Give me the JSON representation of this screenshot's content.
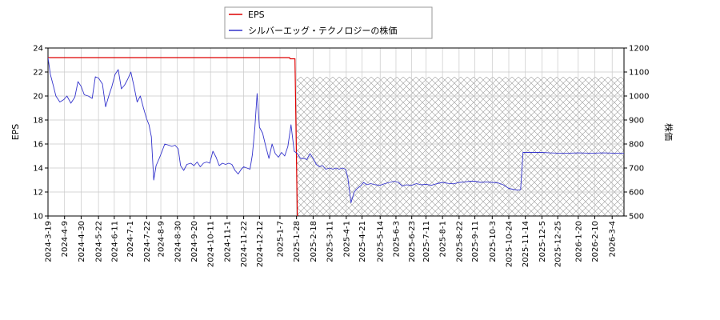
{
  "chart_data": {
    "type": "line",
    "legend": {
      "placement": "top-center",
      "entries": [
        {
          "name": "EPS",
          "color": "#dd0000"
        },
        {
          "name": "シルバーエッグ・テクノロジーの株価",
          "color": "#3333cc"
        }
      ]
    },
    "ylabel_left": "EPS",
    "ylabel_right": "株価",
    "ylim_left": [
      10,
      24
    ],
    "ylim_right": [
      500,
      1200
    ],
    "yticks_left": [
      "10",
      "12",
      "14",
      "16",
      "18",
      "20",
      "22",
      "24"
    ],
    "yticks_right": [
      "500",
      "600",
      "700",
      "800",
      "900",
      "1000",
      "1100",
      "1200"
    ],
    "xlim": [
      "2024-03-19",
      "2026-03-19"
    ],
    "xticks": [
      "2024-3-19",
      "2024-4-9",
      "2024-4-30",
      "2024-5-22",
      "2024-6-11",
      "2024-7-1",
      "2024-7-22",
      "2024-8-9",
      "2024-8-30",
      "2024-9-20",
      "2024-10-11",
      "2024-11-1",
      "2024-11-22",
      "2024-12-12",
      "2025-1-7",
      "2025-1-28",
      "2025-2-18",
      "2025-3-11",
      "2025-4-1",
      "2025-4-21",
      "2025-5-14",
      "2025-6-3",
      "2025-6-23",
      "2025-7-11",
      "2025-8-1",
      "2025-8-22",
      "2025-9-11",
      "2025-10-3",
      "2025-10-24",
      "2025-11-14",
      "2025-12-5",
      "2025-12-25",
      "2026-1-20",
      "2026-2-10",
      "2026-3-4"
    ],
    "grid": true,
    "forecast_region": {
      "x_start": "2025-01-28",
      "x_end": "2026-03-19",
      "y_top_right": 1080,
      "pattern": "crosshatch"
    },
    "series": [
      {
        "name": "EPS",
        "axis": "left",
        "color": "#dd0000",
        "points": [
          {
            "x": "2024-03-19",
            "y": 23.2
          },
          {
            "x": "2025-01-19",
            "y": 23.2
          },
          {
            "x": "2025-01-20",
            "y": 23.1
          },
          {
            "x": "2025-01-26",
            "y": 23.1
          },
          {
            "x": "2025-01-29",
            "y": 10.0
          }
        ]
      },
      {
        "name": "シルバーエッグ・テクノロジーの株価",
        "axis": "right",
        "color": "#3333cc",
        "points": [
          {
            "x": "2024-03-19",
            "y": 1160
          },
          {
            "x": "2024-03-22",
            "y": 1090
          },
          {
            "x": "2024-03-26",
            "y": 1040
          },
          {
            "x": "2024-03-29",
            "y": 1000
          },
          {
            "x": "2024-04-03",
            "y": 975
          },
          {
            "x": "2024-04-08",
            "y": 985
          },
          {
            "x": "2024-04-12",
            "y": 1000
          },
          {
            "x": "2024-04-17",
            "y": 970
          },
          {
            "x": "2024-04-22",
            "y": 995
          },
          {
            "x": "2024-04-26",
            "y": 1060
          },
          {
            "x": "2024-04-30",
            "y": 1040
          },
          {
            "x": "2024-05-04",
            "y": 1005
          },
          {
            "x": "2024-05-09",
            "y": 1000
          },
          {
            "x": "2024-05-14",
            "y": 990
          },
          {
            "x": "2024-05-18",
            "y": 1080
          },
          {
            "x": "2024-05-22",
            "y": 1075
          },
          {
            "x": "2024-05-27",
            "y": 1050
          },
          {
            "x": "2024-05-31",
            "y": 955
          },
          {
            "x": "2024-06-04",
            "y": 1000
          },
          {
            "x": "2024-06-08",
            "y": 1040
          },
          {
            "x": "2024-06-12",
            "y": 1090
          },
          {
            "x": "2024-06-16",
            "y": 1110
          },
          {
            "x": "2024-06-20",
            "y": 1030
          },
          {
            "x": "2024-06-24",
            "y": 1045
          },
          {
            "x": "2024-06-28",
            "y": 1070
          },
          {
            "x": "2024-07-02",
            "y": 1100
          },
          {
            "x": "2024-07-06",
            "y": 1040
          },
          {
            "x": "2024-07-10",
            "y": 975
          },
          {
            "x": "2024-07-14",
            "y": 1000
          },
          {
            "x": "2024-07-18",
            "y": 950
          },
          {
            "x": "2024-07-22",
            "y": 905
          },
          {
            "x": "2024-07-25",
            "y": 880
          },
          {
            "x": "2024-07-28",
            "y": 830
          },
          {
            "x": "2024-07-31",
            "y": 650
          },
          {
            "x": "2024-08-03",
            "y": 710
          },
          {
            "x": "2024-08-07",
            "y": 740
          },
          {
            "x": "2024-08-10",
            "y": 765
          },
          {
            "x": "2024-08-14",
            "y": 800
          },
          {
            "x": "2024-08-19",
            "y": 795
          },
          {
            "x": "2024-08-23",
            "y": 790
          },
          {
            "x": "2024-08-27",
            "y": 795
          },
          {
            "x": "2024-08-31",
            "y": 780
          },
          {
            "x": "2024-09-03",
            "y": 710
          },
          {
            "x": "2024-09-07",
            "y": 690
          },
          {
            "x": "2024-09-11",
            "y": 715
          },
          {
            "x": "2024-09-16",
            "y": 720
          },
          {
            "x": "2024-09-20",
            "y": 710
          },
          {
            "x": "2024-09-24",
            "y": 725
          },
          {
            "x": "2024-09-28",
            "y": 705
          },
          {
            "x": "2024-10-02",
            "y": 720
          },
          {
            "x": "2024-10-06",
            "y": 725
          },
          {
            "x": "2024-10-10",
            "y": 720
          },
          {
            "x": "2024-10-14",
            "y": 770
          },
          {
            "x": "2024-10-18",
            "y": 745
          },
          {
            "x": "2024-10-22",
            "y": 710
          },
          {
            "x": "2024-10-26",
            "y": 720
          },
          {
            "x": "2024-10-30",
            "y": 715
          },
          {
            "x": "2024-11-03",
            "y": 720
          },
          {
            "x": "2024-11-07",
            "y": 715
          },
          {
            "x": "2024-11-11",
            "y": 690
          },
          {
            "x": "2024-11-15",
            "y": 675
          },
          {
            "x": "2024-11-19",
            "y": 695
          },
          {
            "x": "2024-11-22",
            "y": 705
          },
          {
            "x": "2024-11-26",
            "y": 700
          },
          {
            "x": "2024-11-30",
            "y": 695
          },
          {
            "x": "2024-12-03",
            "y": 755
          },
          {
            "x": "2024-12-06",
            "y": 860
          },
          {
            "x": "2024-12-09",
            "y": 1010
          },
          {
            "x": "2024-12-12",
            "y": 870
          },
          {
            "x": "2024-12-16",
            "y": 845
          },
          {
            "x": "2024-12-20",
            "y": 790
          },
          {
            "x": "2024-12-24",
            "y": 740
          },
          {
            "x": "2024-12-28",
            "y": 800
          },
          {
            "x": "2025-01-01",
            "y": 760
          },
          {
            "x": "2025-01-05",
            "y": 745
          },
          {
            "x": "2025-01-09",
            "y": 765
          },
          {
            "x": "2025-01-13",
            "y": 750
          },
          {
            "x": "2025-01-17",
            "y": 790
          },
          {
            "x": "2025-01-21",
            "y": 880
          },
          {
            "x": "2025-01-25",
            "y": 770
          },
          {
            "x": "2025-01-29",
            "y": 760
          },
          {
            "x": "2025-02-02",
            "y": 740
          },
          {
            "x": "2025-02-06",
            "y": 740
          },
          {
            "x": "2025-02-10",
            "y": 735
          },
          {
            "x": "2025-02-14",
            "y": 760
          },
          {
            "x": "2025-02-18",
            "y": 740
          },
          {
            "x": "2025-02-22",
            "y": 715
          },
          {
            "x": "2025-02-26",
            "y": 705
          },
          {
            "x": "2025-03-02",
            "y": 710
          },
          {
            "x": "2025-03-06",
            "y": 695
          },
          {
            "x": "2025-03-11",
            "y": 700
          },
          {
            "x": "2025-03-15",
            "y": 695
          },
          {
            "x": "2025-03-19",
            "y": 700
          },
          {
            "x": "2025-03-23",
            "y": 695
          },
          {
            "x": "2025-03-27",
            "y": 700
          },
          {
            "x": "2025-03-31",
            "y": 695
          },
          {
            "x": "2025-04-03",
            "y": 660
          },
          {
            "x": "2025-04-07",
            "y": 555
          },
          {
            "x": "2025-04-11",
            "y": 600
          },
          {
            "x": "2025-04-15",
            "y": 615
          },
          {
            "x": "2025-04-19",
            "y": 625
          },
          {
            "x": "2025-04-23",
            "y": 640
          },
          {
            "x": "2025-04-27",
            "y": 630
          },
          {
            "x": "2025-05-02",
            "y": 635
          },
          {
            "x": "2025-05-08",
            "y": 630
          },
          {
            "x": "2025-05-14",
            "y": 628
          },
          {
            "x": "2025-05-20",
            "y": 635
          },
          {
            "x": "2025-05-26",
            "y": 640
          },
          {
            "x": "2025-06-01",
            "y": 645
          },
          {
            "x": "2025-06-06",
            "y": 640
          },
          {
            "x": "2025-06-11",
            "y": 625
          },
          {
            "x": "2025-06-16",
            "y": 630
          },
          {
            "x": "2025-06-23",
            "y": 628
          },
          {
            "x": "2025-06-29",
            "y": 635
          },
          {
            "x": "2025-07-05",
            "y": 630
          },
          {
            "x": "2025-07-11",
            "y": 632
          },
          {
            "x": "2025-07-18",
            "y": 628
          },
          {
            "x": "2025-07-25",
            "y": 635
          },
          {
            "x": "2025-08-01",
            "y": 640
          },
          {
            "x": "2025-08-08",
            "y": 636
          },
          {
            "x": "2025-08-15",
            "y": 634
          },
          {
            "x": "2025-08-22",
            "y": 640
          },
          {
            "x": "2025-08-29",
            "y": 642
          },
          {
            "x": "2025-09-05",
            "y": 645
          },
          {
            "x": "2025-09-11",
            "y": 645
          },
          {
            "x": "2025-09-18",
            "y": 640
          },
          {
            "x": "2025-09-25",
            "y": 642
          },
          {
            "x": "2025-10-03",
            "y": 640
          },
          {
            "x": "2025-10-10",
            "y": 638
          },
          {
            "x": "2025-10-17",
            "y": 630
          },
          {
            "x": "2025-10-24",
            "y": 615
          },
          {
            "x": "2025-10-31",
            "y": 610
          },
          {
            "x": "2025-11-05",
            "y": 608
          },
          {
            "x": "2025-11-08",
            "y": 610
          },
          {
            "x": "2025-11-11",
            "y": 765
          },
          {
            "x": "2025-11-14",
            "y": 765
          },
          {
            "x": "2025-11-25",
            "y": 765
          },
          {
            "x": "2025-12-05",
            "y": 765
          },
          {
            "x": "2025-12-15",
            "y": 763
          },
          {
            "x": "2025-12-25",
            "y": 762
          },
          {
            "x": "2026-01-10",
            "y": 762
          },
          {
            "x": "2026-01-20",
            "y": 763
          },
          {
            "x": "2026-02-01",
            "y": 762
          },
          {
            "x": "2026-02-10",
            "y": 762
          },
          {
            "x": "2026-02-20",
            "y": 763
          },
          {
            "x": "2026-03-04",
            "y": 762
          },
          {
            "x": "2026-03-19",
            "y": 761
          }
        ]
      }
    ]
  }
}
